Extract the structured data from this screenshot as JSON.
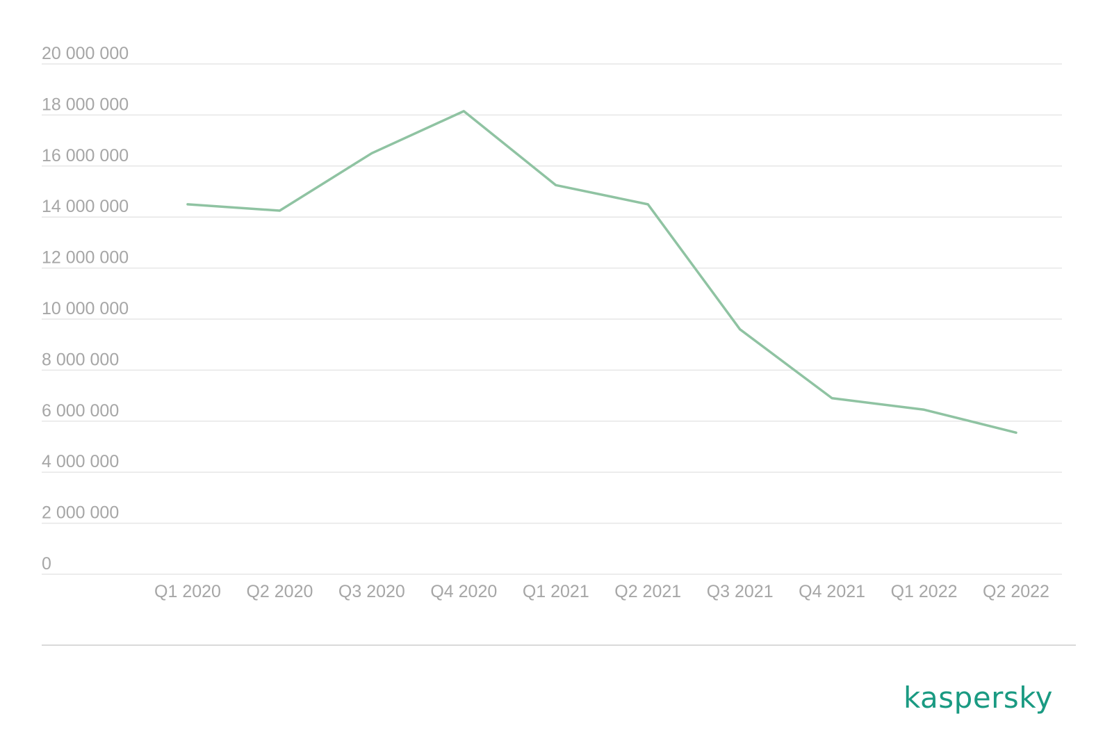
{
  "chart_data": {
    "type": "line",
    "title": "",
    "xlabel": "",
    "ylabel": "",
    "categories": [
      "Q1 2020",
      "Q2 2020",
      "Q3 2020",
      "Q4 2020",
      "Q1 2021",
      "Q2 2021",
      "Q3 2021",
      "Q4 2021",
      "Q1 2022",
      "Q2 2022"
    ],
    "series": [
      {
        "values": [
          14500000,
          14250000,
          16500000,
          18150000,
          15250000,
          14500000,
          9600000,
          6900000,
          6450000,
          5550000
        ],
        "color": "#8fc3a2"
      }
    ],
    "ylim": [
      0,
      20000000
    ],
    "y_ticks": [
      0,
      2000000,
      4000000,
      6000000,
      8000000,
      10000000,
      12000000,
      14000000,
      16000000,
      18000000,
      20000000
    ],
    "y_tick_labels": [
      "0",
      "2 000 000",
      "4 000 000",
      "6 000 000",
      "8 000 000",
      "10 000 000",
      "12 000 000",
      "14 000 000",
      "16 000 000",
      "18 000 000",
      "20 000 000"
    ],
    "grid": true,
    "legend": "none"
  },
  "brand": {
    "logo_text": "kaspersky",
    "logo_color": "#1a9a82"
  }
}
